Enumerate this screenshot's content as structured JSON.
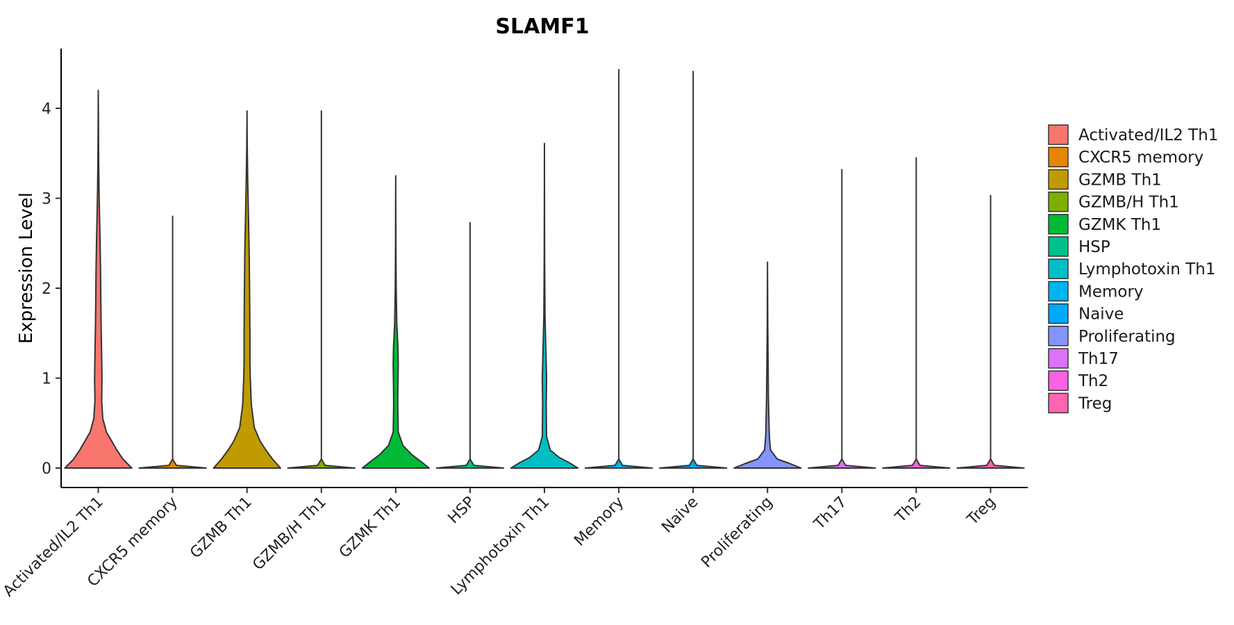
{
  "chart_data": {
    "type": "violin",
    "title": "SLAMF1",
    "xlabel": "",
    "ylabel": "Expression Level",
    "ylim": [
      -0.22,
      4.62
    ],
    "yticks": [
      0,
      1,
      2,
      3,
      4
    ],
    "grid": false,
    "legend_position": "right",
    "series": [
      {
        "name": "Activated/IL2 Th1",
        "color": "#F8766D",
        "max": 4.2,
        "profile": [
          [
            0,
            0.45
          ],
          [
            0.1,
            0.33
          ],
          [
            0.2,
            0.25
          ],
          [
            0.3,
            0.18
          ],
          [
            0.4,
            0.11
          ],
          [
            0.55,
            0.06
          ],
          [
            0.75,
            0.045
          ],
          [
            1,
            0.05
          ],
          [
            1.25,
            0.045
          ],
          [
            1.5,
            0.04
          ],
          [
            1.8,
            0.035
          ],
          [
            2.2,
            0.03
          ],
          [
            2.6,
            0.022
          ],
          [
            3,
            0.012
          ],
          [
            3.4,
            0.005
          ],
          [
            3.8,
            0.002
          ],
          [
            4.2,
            0.0
          ]
        ]
      },
      {
        "name": "CXCR5 memory",
        "color": "#E58700",
        "max": 2.8,
        "profile": [
          [
            0,
            0.45
          ],
          [
            0.03,
            0.05
          ],
          [
            0.1,
            0.0
          ],
          [
            2.8,
            0.0
          ]
        ]
      },
      {
        "name": "GZMB Th1",
        "color": "#C09B00",
        "max": 3.97,
        "profile": [
          [
            0,
            0.46
          ],
          [
            0.1,
            0.35
          ],
          [
            0.2,
            0.26
          ],
          [
            0.3,
            0.18
          ],
          [
            0.45,
            0.1
          ],
          [
            0.7,
            0.06
          ],
          [
            1,
            0.045
          ],
          [
            1.2,
            0.04
          ],
          [
            1.5,
            0.04
          ],
          [
            2,
            0.035
          ],
          [
            2.4,
            0.03
          ],
          [
            2.8,
            0.02
          ],
          [
            3.2,
            0.01
          ],
          [
            3.6,
            0.003
          ],
          [
            3.97,
            0.0
          ]
        ]
      },
      {
        "name": "GZMB/H Th1",
        "color": "#7CAE00",
        "max": 3.97,
        "profile": [
          [
            0,
            0.45
          ],
          [
            0.03,
            0.05
          ],
          [
            0.1,
            0.0
          ],
          [
            3.97,
            0.0
          ]
        ]
      },
      {
        "name": "GZMK Th1",
        "color": "#00BA38",
        "max": 3.25,
        "profile": [
          [
            0,
            0.46
          ],
          [
            0.07,
            0.35
          ],
          [
            0.15,
            0.22
          ],
          [
            0.25,
            0.1
          ],
          [
            0.4,
            0.035
          ],
          [
            0.7,
            0.028
          ],
          [
            0.9,
            0.03
          ],
          [
            1.15,
            0.035
          ],
          [
            1.35,
            0.03
          ],
          [
            1.6,
            0.015
          ],
          [
            2,
            0.006
          ],
          [
            2.5,
            0.002
          ],
          [
            3.25,
            0.0
          ]
        ]
      },
      {
        "name": "HSP",
        "color": "#00C08B",
        "max": 2.73,
        "profile": [
          [
            0,
            0.45
          ],
          [
            0.03,
            0.05
          ],
          [
            0.1,
            0.0
          ],
          [
            2.73,
            0.0
          ]
        ]
      },
      {
        "name": "Lymphotoxin Th1",
        "color": "#00BFC4",
        "max": 3.61,
        "profile": [
          [
            0,
            0.46
          ],
          [
            0.06,
            0.34
          ],
          [
            0.12,
            0.2
          ],
          [
            0.2,
            0.08
          ],
          [
            0.35,
            0.03
          ],
          [
            0.7,
            0.025
          ],
          [
            1,
            0.03
          ],
          [
            1.3,
            0.02
          ],
          [
            1.7,
            0.008
          ],
          [
            2.3,
            0.003
          ],
          [
            3,
            0.001
          ],
          [
            3.61,
            0.0
          ]
        ]
      },
      {
        "name": "Memory",
        "color": "#00B4F0",
        "max": 4.43,
        "profile": [
          [
            0,
            0.45
          ],
          [
            0.03,
            0.05
          ],
          [
            0.1,
            0.0
          ],
          [
            4.43,
            0.0
          ]
        ]
      },
      {
        "name": "Naive",
        "color": "#00A9FF",
        "max": 4.41,
        "profile": [
          [
            0,
            0.45
          ],
          [
            0.03,
            0.05
          ],
          [
            0.1,
            0.0
          ],
          [
            4.41,
            0.0
          ]
        ]
      },
      {
        "name": "Proliferating",
        "color": "#8494FF",
        "max": 2.29,
        "profile": [
          [
            0,
            0.45
          ],
          [
            0.05,
            0.3
          ],
          [
            0.1,
            0.13
          ],
          [
            0.2,
            0.04
          ],
          [
            0.35,
            0.025
          ],
          [
            0.5,
            0.02
          ],
          [
            0.8,
            0.012
          ],
          [
            1.2,
            0.008
          ],
          [
            1.6,
            0.003
          ],
          [
            2.29,
            0.0
          ]
        ]
      },
      {
        "name": "Th17",
        "color": "#DC71FA",
        "max": 3.32,
        "profile": [
          [
            0,
            0.45
          ],
          [
            0.03,
            0.05
          ],
          [
            0.1,
            0.0
          ],
          [
            3.32,
            0.0
          ]
        ]
      },
      {
        "name": "Th2",
        "color": "#F763E0",
        "max": 3.45,
        "profile": [
          [
            0,
            0.45
          ],
          [
            0.03,
            0.05
          ],
          [
            0.1,
            0.0
          ],
          [
            3.45,
            0.0
          ]
        ]
      },
      {
        "name": "Treg",
        "color": "#FF64B0",
        "max": 3.03,
        "profile": [
          [
            0,
            0.45
          ],
          [
            0.03,
            0.05
          ],
          [
            0.1,
            0.0
          ],
          [
            3.03,
            0.0
          ]
        ]
      }
    ]
  }
}
